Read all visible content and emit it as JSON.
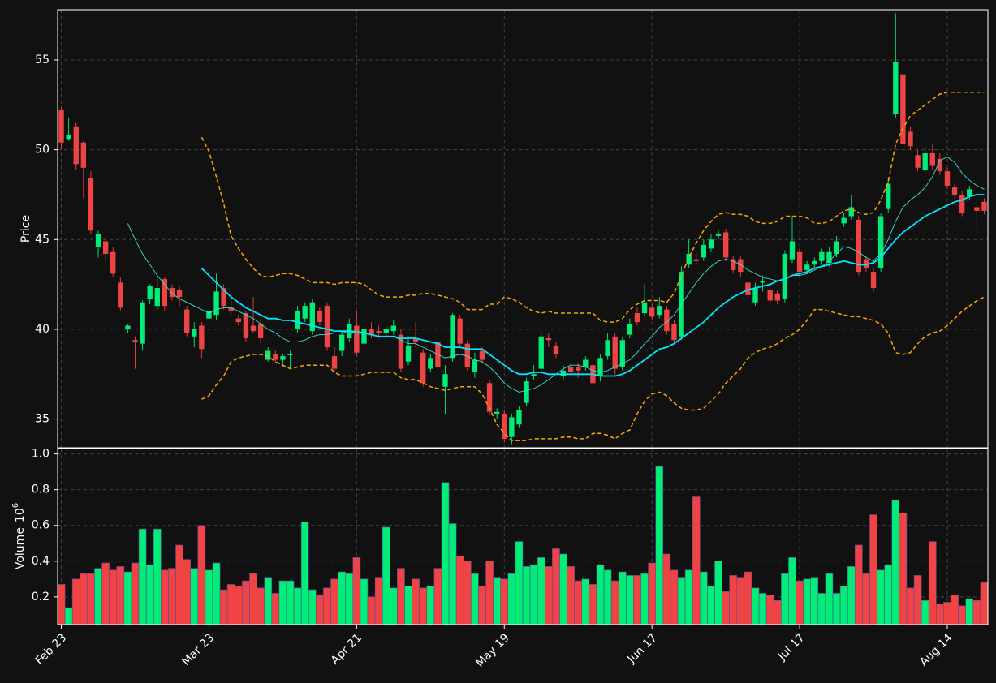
{
  "chart_data": {
    "type": "candlestick",
    "xlim": [
      -0.5,
      125.5
    ],
    "xticks": [
      {
        "value": 0,
        "label": "Feb 23"
      },
      {
        "value": 20,
        "label": "Mar 23"
      },
      {
        "value": 40,
        "label": "Apr 21"
      },
      {
        "value": 60,
        "label": "May 19"
      },
      {
        "value": 80,
        "label": "Jun 17"
      },
      {
        "value": 100,
        "label": "Jul 17"
      },
      {
        "value": 120,
        "label": "Aug 14"
      }
    ],
    "ylabel": "Price",
    "ylim": [
      33.4,
      57.8
    ],
    "yticks": [
      35,
      40,
      45,
      50,
      55
    ],
    "grid": true,
    "up_color": "#00ee77",
    "down_color": "#f04444",
    "open": [
      52.2,
      50.6,
      51.3,
      50.4,
      48.4,
      44.6,
      44.9,
      44.3,
      42.6,
      40.0,
      39.4,
      39.2,
      41.7,
      41.3,
      42.8,
      42.3,
      42.2,
      41.1,
      39.6,
      40.2,
      40.6,
      40.8,
      42.3,
      41.2,
      40.6,
      40.9,
      40.2,
      40.3,
      38.3,
      38.6,
      38.3,
      38.6,
      40.0,
      40.6,
      39.9,
      41.0,
      41.3,
      38.5,
      38.8,
      39.5,
      40.2,
      39.2,
      40.0,
      39.9,
      39.8,
      39.9,
      39.7,
      38.2,
      39.5,
      38.7,
      37.8,
      39.3,
      36.8,
      38.4,
      40.6,
      39.2,
      37.6,
      38.8,
      37.0,
      35.3,
      35.3,
      34.0,
      34.7,
      35.9,
      37.4,
      37.8,
      39.5,
      39.1,
      37.4,
      37.9,
      37.9,
      37.9,
      38.0,
      37.4,
      38.5,
      39.6,
      37.9,
      39.7,
      40.9,
      40.9,
      41.2,
      40.8,
      41.1,
      40.3,
      39.6,
      43.6,
      43.9,
      44.0,
      44.5,
      45.2,
      45.4,
      43.9,
      43.9,
      42.6,
      41.5,
      42.6,
      42.2,
      42.0,
      41.7,
      43.9,
      44.3,
      43.3,
      43.6,
      43.8,
      43.7,
      44.2,
      45.9,
      46.3,
      46.1,
      43.9,
      43.2,
      43.4,
      46.7,
      52.0,
      54.2,
      51.0,
      49.7,
      48.9,
      49.8,
      49.5,
      48.8,
      47.9,
      47.5,
      47.4,
      46.8,
      47.1
    ],
    "high": [
      52.4,
      51.8,
      51.5,
      50.5,
      48.8,
      45.5,
      45.1,
      44.6,
      42.9,
      40.3,
      39.6,
      41.6,
      42.5,
      43.0,
      42.9,
      42.5,
      42.4,
      41.3,
      40.4,
      40.4,
      41.8,
      43.1,
      42.5,
      42.0,
      40.8,
      41.0,
      41.8,
      40.6,
      39.0,
      38.8,
      38.6,
      38.8,
      41.3,
      41.5,
      41.7,
      41.2,
      41.5,
      39.0,
      39.9,
      40.6,
      41.0,
      40.2,
      40.4,
      40.2,
      40.2,
      40.5,
      40.0,
      39.6,
      40.4,
      38.9,
      38.6,
      39.5,
      38.0,
      40.9,
      40.8,
      39.4,
      38.7,
      39.0,
      37.2,
      35.6,
      35.5,
      35.3,
      35.7,
      37.3,
      38.0,
      39.9,
      39.8,
      39.3,
      38.0,
      38.1,
      38.1,
      38.5,
      38.4,
      38.6,
      39.8,
      39.8,
      39.6,
      40.6,
      41.2,
      42.5,
      41.4,
      41.8,
      41.3,
      40.5,
      43.5,
      45.0,
      44.3,
      45.0,
      45.3,
      45.5,
      45.6,
      44.1,
      44.1,
      42.8,
      42.6,
      43.0,
      42.4,
      42.2,
      44.4,
      46.3,
      44.5,
      43.8,
      44.0,
      44.5,
      44.6,
      45.2,
      46.5,
      47.5,
      46.3,
      44.1,
      43.4,
      46.5,
      48.4,
      57.6,
      54.4,
      51.3,
      50.0,
      50.2,
      50.3,
      49.8,
      49.0,
      48.1,
      47.7,
      48.0,
      47.2,
      47.3
    ],
    "low": [
      50.0,
      50.5,
      48.9,
      47.3,
      45.3,
      44.0,
      43.8,
      42.9,
      41.0,
      39.8,
      37.8,
      38.8,
      41.4,
      41.0,
      41.0,
      41.6,
      41.3,
      39.6,
      39.0,
      38.4,
      40.4,
      40.5,
      41.1,
      40.8,
      40.2,
      39.3,
      39.8,
      39.2,
      38.2,
      38.1,
      37.9,
      37.8,
      39.8,
      40.4,
      39.7,
      40.2,
      38.8,
      37.6,
      38.5,
      39.3,
      38.5,
      39.0,
      39.5,
      39.5,
      39.6,
      39.7,
      37.6,
      38.0,
      39.0,
      36.8,
      37.6,
      37.7,
      35.3,
      38.2,
      39.0,
      37.7,
      37.3,
      38.1,
      35.2,
      35.0,
      33.7,
      33.6,
      34.5,
      35.7,
      37.2,
      37.6,
      39.0,
      38.4,
      37.2,
      37.4,
      37.3,
      37.7,
      36.8,
      37.1,
      38.3,
      37.5,
      37.7,
      39.5,
      40.2,
      40.7,
      40.5,
      40.6,
      39.7,
      39.2,
      39.4,
      43.4,
      43.6,
      43.8,
      44.3,
      45.0,
      43.8,
      43.1,
      42.9,
      40.2,
      41.3,
      42.1,
      41.4,
      41.4,
      41.5,
      43.7,
      43.0,
      43.1,
      43.4,
      43.6,
      43.5,
      44.0,
      45.7,
      46.1,
      43.0,
      43.2,
      42.1,
      43.2,
      46.5,
      51.8,
      50.0,
      50.0,
      48.8,
      48.7,
      48.9,
      48.6,
      47.8,
      47.3,
      46.3,
      47.2,
      45.6,
      46.4
    ],
    "close": [
      50.4,
      50.8,
      49.2,
      49.0,
      45.5,
      45.3,
      44.2,
      43.1,
      41.2,
      40.2,
      39.3,
      41.5,
      42.4,
      42.3,
      41.3,
      41.8,
      41.8,
      39.8,
      40.0,
      38.9,
      41.0,
      42.1,
      41.3,
      41.0,
      40.4,
      39.5,
      39.9,
      39.5,
      38.8,
      38.3,
      38.5,
      38.6,
      41.0,
      41.3,
      41.5,
      40.4,
      39.0,
      37.8,
      39.7,
      40.3,
      38.7,
      40.0,
      39.7,
      39.8,
      40.0,
      40.2,
      37.8,
      39.1,
      39.3,
      37.0,
      38.4,
      37.9,
      37.5,
      40.8,
      39.2,
      37.9,
      38.3,
      38.3,
      35.4,
      35.4,
      33.9,
      35.1,
      35.5,
      37.1,
      37.5,
      39.6,
      39.4,
      38.6,
      37.7,
      37.6,
      37.7,
      38.3,
      37.0,
      38.4,
      39.4,
      37.8,
      39.4,
      40.3,
      40.4,
      41.5,
      40.7,
      41.3,
      39.9,
      39.4,
      43.2,
      44.2,
      43.8,
      44.7,
      45.0,
      45.3,
      44.0,
      43.3,
      43.2,
      41.9,
      42.3,
      42.7,
      41.6,
      41.6,
      44.2,
      44.9,
      43.2,
      43.6,
      43.8,
      44.3,
      44.3,
      44.9,
      46.2,
      46.8,
      43.2,
      43.4,
      42.3,
      46.3,
      48.1,
      54.9,
      50.3,
      50.2,
      49.0,
      49.8,
      49.1,
      48.8,
      48.0,
      47.5,
      46.5,
      47.8,
      46.6,
      46.6
    ],
    "overlays": [
      {
        "color": "#40e0d0",
        "width": 0.9,
        "dashed": false,
        "values": [
          null,
          null,
          null,
          null,
          null,
          null,
          null,
          null,
          null,
          45.9,
          45.0,
          44.2,
          43.6,
          43.0,
          42.5,
          42.0,
          41.7,
          41.5,
          41.3,
          41.1,
          40.9,
          41.1,
          41.2,
          41.2,
          41.0,
          40.8,
          40.6,
          40.3,
          40.0,
          39.8,
          39.5,
          39.3,
          39.3,
          39.4,
          39.6,
          39.7,
          39.7,
          39.8,
          39.8,
          39.9,
          39.9,
          39.8,
          39.7,
          39.6,
          39.6,
          39.6,
          39.4,
          39.2,
          39.2,
          39.0,
          38.8,
          38.6,
          38.4,
          38.5,
          38.6,
          38.5,
          38.3,
          38.2,
          37.9,
          37.5,
          37.0,
          36.7,
          36.5,
          36.6,
          36.7,
          36.9,
          37.2,
          37.5,
          37.8,
          38.0,
          38.0,
          37.9,
          37.7,
          37.6,
          37.7,
          37.9,
          38.1,
          38.3,
          38.7,
          39.2,
          39.6,
          40.1,
          40.4,
          40.8,
          41.4,
          42.0,
          42.6,
          43.1,
          43.5,
          43.8,
          43.9,
          43.8,
          43.6,
          43.3,
          43.1,
          42.9,
          42.8,
          42.7,
          42.8,
          43.0,
          43.0,
          43.1,
          43.3,
          43.5,
          43.8,
          44.2,
          44.6,
          44.5,
          44.3,
          44.0,
          43.8,
          44.2,
          45.0,
          46.0,
          46.8,
          47.2,
          47.5,
          47.9,
          48.5,
          49.4,
          49.6,
          49.3,
          48.7,
          48.3,
          48.0,
          47.8
        ]
      },
      {
        "color": "#00e5ff",
        "width": 1.8,
        "dashed": false,
        "values": [
          null,
          null,
          null,
          null,
          null,
          null,
          null,
          null,
          null,
          null,
          null,
          null,
          null,
          null,
          null,
          null,
          null,
          null,
          null,
          43.4,
          43.0,
          42.6,
          42.2,
          41.8,
          41.5,
          41.2,
          41.0,
          40.8,
          40.6,
          40.6,
          40.5,
          40.5,
          40.4,
          40.3,
          40.2,
          40.1,
          40.0,
          39.9,
          39.9,
          39.9,
          39.8,
          39.8,
          39.7,
          39.6,
          39.6,
          39.6,
          39.5,
          39.5,
          39.5,
          39.4,
          39.3,
          39.2,
          39.0,
          39.0,
          39.0,
          38.9,
          38.9,
          38.9,
          38.6,
          38.3,
          38.0,
          37.7,
          37.5,
          37.5,
          37.6,
          37.6,
          37.5,
          37.5,
          37.5,
          37.5,
          37.5,
          37.5,
          37.5,
          37.4,
          37.4,
          37.4,
          37.5,
          37.7,
          38.0,
          38.3,
          38.6,
          38.9,
          39.0,
          39.2,
          39.5,
          39.8,
          40.1,
          40.4,
          40.8,
          41.2,
          41.5,
          41.8,
          42.0,
          42.2,
          42.3,
          42.4,
          42.5,
          42.7,
          42.8,
          43.0,
          43.1,
          43.2,
          43.4,
          43.5,
          43.6,
          43.7,
          43.8,
          43.7,
          43.6,
          43.6,
          43.7,
          44.0,
          44.5,
          45.0,
          45.4,
          45.7,
          46.0,
          46.3,
          46.5,
          46.7,
          46.9,
          47.1,
          47.2,
          47.4,
          47.5,
          47.5
        ]
      },
      {
        "color": "#ffa500",
        "width": 1.5,
        "dashed": true,
        "values": [
          null,
          null,
          null,
          null,
          null,
          null,
          null,
          null,
          null,
          null,
          null,
          null,
          null,
          null,
          null,
          null,
          null,
          null,
          null,
          50.7,
          49.9,
          48.5,
          47.0,
          45.2,
          44.5,
          43.9,
          43.4,
          43.0,
          42.9,
          43.0,
          43.1,
          43.1,
          43.0,
          42.8,
          42.6,
          42.6,
          42.6,
          42.5,
          42.6,
          42.6,
          42.6,
          42.5,
          42.2,
          41.9,
          41.8,
          41.8,
          41.8,
          41.9,
          41.9,
          42.0,
          42.0,
          41.9,
          41.8,
          41.7,
          41.5,
          41.1,
          41.1,
          41.1,
          41.4,
          41.4,
          41.8,
          41.7,
          41.5,
          41.2,
          41.0,
          40.9,
          41.0,
          40.9,
          40.9,
          40.9,
          40.9,
          40.9,
          40.9,
          40.5,
          40.4,
          40.4,
          40.6,
          41.1,
          41.4,
          41.6,
          41.6,
          41.6,
          41.5,
          42.0,
          43.0,
          44.0,
          44.8,
          45.5,
          46.0,
          46.4,
          46.5,
          46.4,
          46.4,
          46.3,
          46.0,
          45.9,
          45.9,
          46.0,
          46.3,
          46.3,
          46.3,
          46.2,
          45.9,
          45.9,
          46.0,
          46.3,
          46.6,
          46.7,
          46.5,
          46.4,
          46.5,
          47.2,
          48.2,
          50.3,
          51.2,
          51.9,
          52.2,
          52.5,
          52.8,
          53.1,
          53.2,
          53.2,
          53.2,
          53.2,
          53.2,
          53.2
        ]
      },
      {
        "color": "#ffa500",
        "width": 1.5,
        "dashed": true,
        "values": [
          null,
          null,
          null,
          null,
          null,
          null,
          null,
          null,
          null,
          null,
          null,
          null,
          null,
          null,
          null,
          null,
          null,
          null,
          null,
          36.1,
          36.3,
          36.9,
          37.4,
          38.2,
          38.4,
          38.5,
          38.6,
          38.6,
          38.5,
          38.2,
          38.0,
          37.8,
          37.9,
          38.0,
          38.0,
          38.0,
          38.0,
          37.6,
          37.4,
          37.4,
          37.4,
          37.5,
          37.6,
          37.6,
          37.6,
          37.6,
          37.3,
          37.2,
          37.2,
          37.0,
          36.8,
          36.7,
          36.6,
          36.7,
          36.8,
          36.8,
          36.8,
          36.4,
          35.6,
          34.7,
          34.2,
          33.8,
          33.8,
          33.8,
          33.9,
          33.9,
          33.9,
          33.9,
          34.0,
          34.0,
          33.9,
          33.9,
          34.2,
          34.2,
          34.1,
          33.9,
          34.2,
          34.4,
          35.3,
          36.0,
          36.4,
          36.5,
          36.3,
          35.9,
          35.6,
          35.5,
          35.5,
          35.6,
          36.0,
          36.4,
          37.0,
          37.4,
          37.8,
          38.4,
          38.7,
          38.9,
          39.0,
          39.2,
          39.5,
          39.7,
          40.0,
          40.5,
          41.1,
          41.1,
          41.0,
          40.9,
          40.8,
          40.7,
          40.7,
          40.6,
          40.5,
          40.3,
          39.8,
          38.7,
          38.6,
          38.7,
          39.2,
          39.6,
          39.8,
          39.9,
          40.2,
          40.6,
          41.0,
          41.3,
          41.6,
          41.8
        ]
      }
    ],
    "volume": {
      "ylabel": "Volume",
      "scale_base": "10",
      "scale_exponent": "6",
      "ylim": [
        0.045,
        1.03
      ],
      "yticks": [
        0.2,
        0.4,
        0.6,
        0.8,
        {
          "value": 1,
          "label": "1.0"
        }
      ],
      "values": [
        0.27,
        0.14,
        0.3,
        0.33,
        0.33,
        0.36,
        0.39,
        0.35,
        0.37,
        0.34,
        0.39,
        0.58,
        0.38,
        0.58,
        0.35,
        0.36,
        0.49,
        0.41,
        0.36,
        0.6,
        0.35,
        0.39,
        0.24,
        0.27,
        0.26,
        0.29,
        0.33,
        0.25,
        0.31,
        0.22,
        0.29,
        0.29,
        0.25,
        0.62,
        0.24,
        0.21,
        0.25,
        0.3,
        0.34,
        0.33,
        0.42,
        0.3,
        0.2,
        0.31,
        0.59,
        0.25,
        0.36,
        0.26,
        0.3,
        0.25,
        0.26,
        0.36,
        0.84,
        0.61,
        0.43,
        0.4,
        0.33,
        0.26,
        0.4,
        0.31,
        0.3,
        0.33,
        0.51,
        0.37,
        0.38,
        0.42,
        0.37,
        0.47,
        0.44,
        0.37,
        0.29,
        0.3,
        0.27,
        0.38,
        0.35,
        0.29,
        0.34,
        0.32,
        0.32,
        0.33,
        0.39,
        0.93,
        0.44,
        0.35,
        0.31,
        0.35,
        0.76,
        0.34,
        0.26,
        0.4,
        0.23,
        0.32,
        0.31,
        0.34,
        0.25,
        0.22,
        0.21,
        0.18,
        0.33,
        0.42,
        0.29,
        0.3,
        0.31,
        0.22,
        0.33,
        0.22,
        0.26,
        0.37,
        0.49,
        0.33,
        0.66,
        0.35,
        0.38,
        0.74,
        0.67,
        0.25,
        0.32,
        0.18,
        0.51,
        0.16,
        0.17,
        0.21,
        0.15,
        0.19,
        0.18,
        0.28
      ]
    }
  }
}
